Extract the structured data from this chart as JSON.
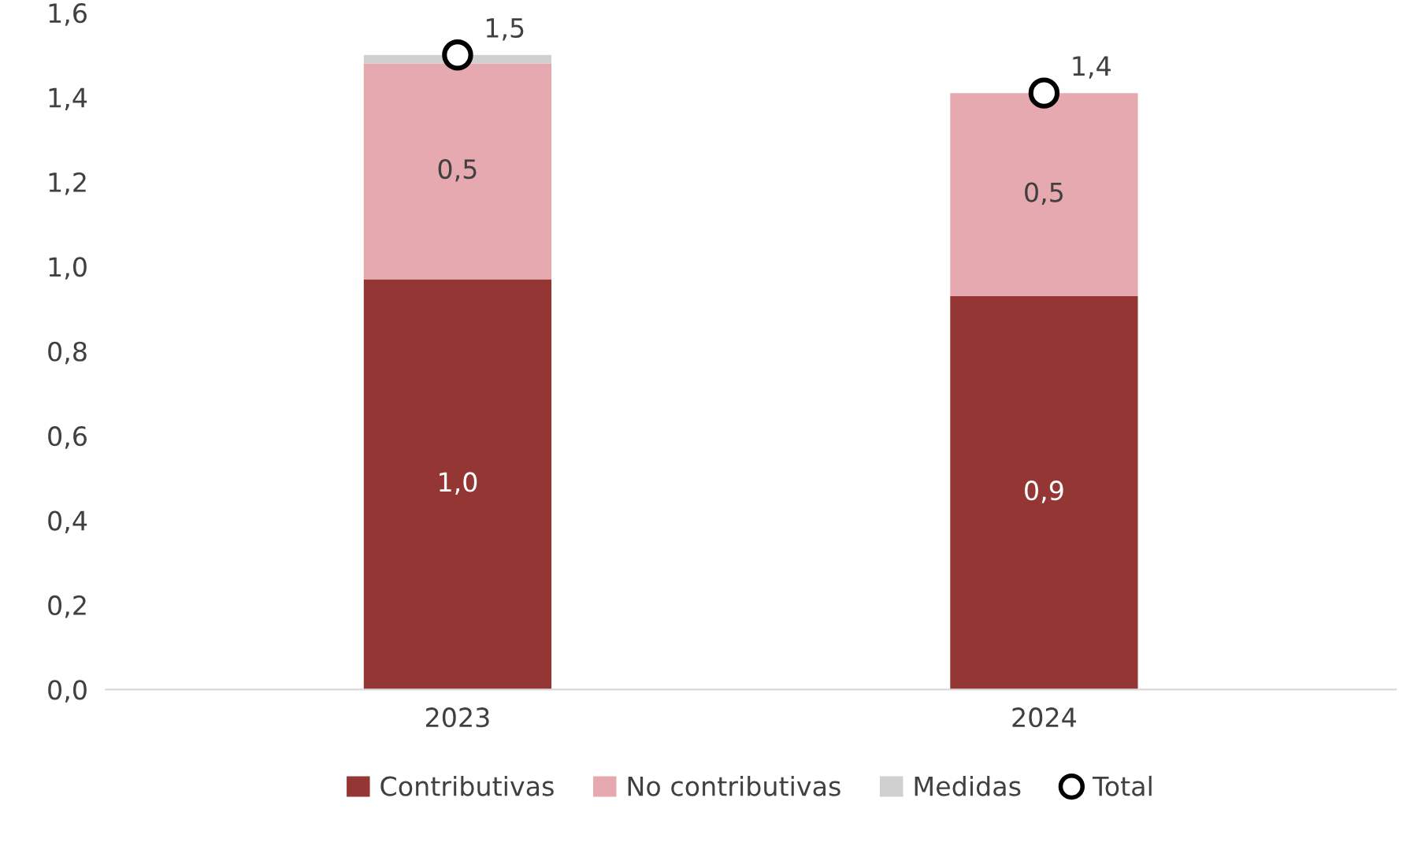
{
  "chart_data": {
    "type": "bar",
    "stacked": true,
    "categories": [
      "2023",
      "2024"
    ],
    "series": [
      {
        "name": "Contributivas",
        "color": "#943634",
        "values": [
          0.97,
          0.93
        ],
        "value_labels": [
          "1,0",
          "0,9"
        ]
      },
      {
        "name": "No contributivas",
        "color": "#e6a9b0",
        "values": [
          0.51,
          0.48
        ],
        "value_labels": [
          "0,5",
          "0,5"
        ]
      },
      {
        "name": "Medidas",
        "color": "#d0d0d0",
        "values": [
          0.02,
          0
        ],
        "value_labels": [
          null,
          null
        ]
      },
      {
        "name": "Total",
        "type": "scatter",
        "marker": "circle",
        "color": "#000000",
        "values": [
          1.5,
          1.41
        ],
        "value_labels": [
          "1,5",
          "1,4"
        ]
      }
    ],
    "ylim": [
      0,
      1.6
    ],
    "yticks": [
      {
        "value": 0,
        "label": "0,0"
      },
      {
        "value": 0.2,
        "label": "0,2"
      },
      {
        "value": 0.4,
        "label": "0,4"
      },
      {
        "value": 0.6,
        "label": "0,6"
      },
      {
        "value": 0.8,
        "label": "0,8"
      },
      {
        "value": 1.0,
        "label": "1,0"
      },
      {
        "value": 1.2,
        "label": "1,2"
      },
      {
        "value": 1.4,
        "label": "1,4"
      },
      {
        "value": 1.6,
        "label": "1,6"
      }
    ],
    "grid": false,
    "legend": "bottom"
  }
}
